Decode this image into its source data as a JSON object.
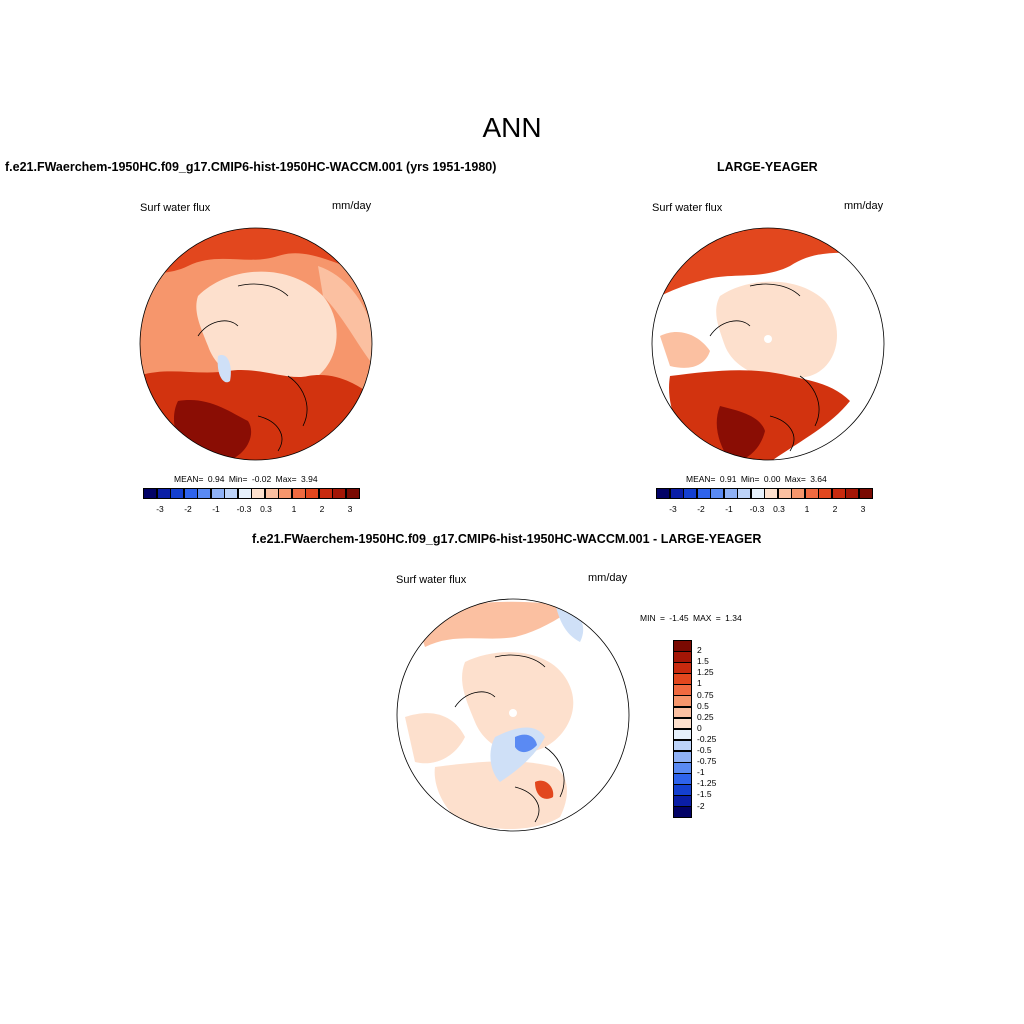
{
  "main_title": "ANN",
  "panel1": {
    "title": "f.e21.FWaerchem-1950HC.f09_g17.CMIP6-hist-1950HC-WACCM.001 (yrs 1951-1980)",
    "variable": "Surf water flux",
    "units": "mm/day",
    "stats": {
      "mean_label": "MEAN=",
      "mean": "0.94",
      "min_label": "Min=",
      "min": "-0.02",
      "max_label": "Max=",
      "max": "3.94"
    }
  },
  "panel2": {
    "title": "LARGE-YEAGER",
    "variable": "Surf water flux",
    "units": "mm/day",
    "stats": {
      "mean_label": "MEAN=",
      "mean": "0.91",
      "min_label": "Min=",
      "min": "0.00",
      "max_label": "Max=",
      "max": "3.64"
    }
  },
  "panel3": {
    "title": "f.e21.FWaerchem-1950HC.f09_g17.CMIP6-hist-1950HC-WACCM.001 - LARGE-YEAGER",
    "variable": "Surf water flux",
    "units": "mm/day",
    "stats": {
      "min_label": "MIN =",
      "min": "-1.45",
      "max_label": "MAX =",
      "max": "1.34"
    }
  },
  "colorbar_horizontal": {
    "tick_labels": [
      "-3",
      "-2",
      "-1",
      "-0.3",
      "0.3",
      "1",
      "2",
      "3"
    ],
    "colors": [
      "#020266",
      "#0a1ea6",
      "#1440d0",
      "#2e63ec",
      "#5a8af3",
      "#8fb1f5",
      "#bdd3f8",
      "#e6f0fb",
      "#fde0cd",
      "#fbc0a1",
      "#f6966c",
      "#f06a40",
      "#e2471e",
      "#c82a0e",
      "#a31606",
      "#7a0a02"
    ]
  },
  "colorbar_vertical": {
    "tick_labels": [
      "2",
      "1.5",
      "1.25",
      "1",
      "0.75",
      "0.5",
      "0.25",
      "0",
      "-0.25",
      "-0.5",
      "-0.75",
      "-1",
      "-1.25",
      "-1.5",
      "-2"
    ],
    "colors": [
      "#7a0a02",
      "#a31606",
      "#c82a0e",
      "#e2471e",
      "#f06a40",
      "#f6966c",
      "#fbc0a1",
      "#fde0cd",
      "#e6f0fb",
      "#bdd3f8",
      "#8fb1f5",
      "#5a8af3",
      "#2e63ec",
      "#1440d0",
      "#0a1ea6",
      "#020266"
    ]
  },
  "map_colors": {
    "dark_red": "#8a0d04",
    "red": "#d2330f",
    "orange": "#f06a40",
    "salmon": "#f6966c",
    "peach": "#fbc0a1",
    "cream": "#fde0cd",
    "light_blue": "#cfe0f7",
    "blue": "#5a8af3"
  }
}
